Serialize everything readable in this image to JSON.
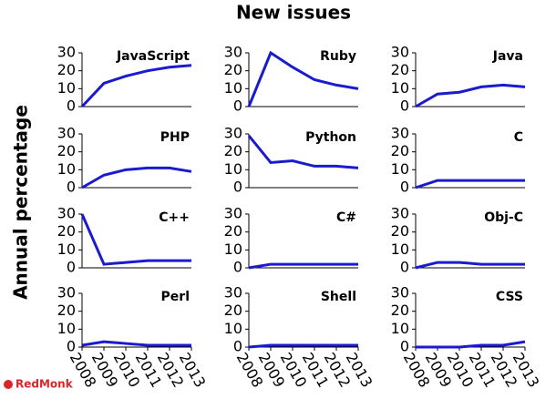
{
  "title": "New issues",
  "ylabel": "Annual percentage",
  "credit": "RedMonk",
  "chart_data": [
    {
      "type": "line",
      "title": "JavaScript",
      "x": [
        2008,
        2009,
        2010,
        2011,
        2012,
        2013
      ],
      "values": [
        0,
        13,
        17,
        20,
        22,
        23
      ],
      "color": "#1a1ad0",
      "xlim": [
        2008,
        2013
      ],
      "ylim": [
        0,
        30
      ],
      "yticks": [
        0,
        10,
        20,
        30
      ]
    },
    {
      "type": "line",
      "title": "Ruby",
      "x": [
        2008,
        2009,
        2010,
        2011,
        2012,
        2013
      ],
      "values": [
        0,
        30,
        22,
        15,
        12,
        10
      ],
      "color": "#1a1ad0",
      "xlim": [
        2008,
        2013
      ],
      "ylim": [
        0,
        30
      ],
      "yticks": [
        0,
        10,
        20,
        30
      ]
    },
    {
      "type": "line",
      "title": "Java",
      "x": [
        2008,
        2009,
        2010,
        2011,
        2012,
        2013
      ],
      "values": [
        0,
        7,
        8,
        11,
        12,
        11
      ],
      "color": "#1a1ad0",
      "xlim": [
        2008,
        2013
      ],
      "ylim": [
        0,
        30
      ],
      "yticks": [
        0,
        10,
        20,
        30
      ]
    },
    {
      "type": "line",
      "title": "PHP",
      "x": [
        2008,
        2009,
        2010,
        2011,
        2012,
        2013
      ],
      "values": [
        0,
        7,
        10,
        11,
        11,
        9
      ],
      "color": "#1a1ad0",
      "xlim": [
        2008,
        2013
      ],
      "ylim": [
        0,
        30
      ],
      "yticks": [
        0,
        10,
        20,
        30
      ]
    },
    {
      "type": "line",
      "title": "Python",
      "x": [
        2008,
        2009,
        2010,
        2011,
        2012,
        2013
      ],
      "values": [
        29,
        14,
        15,
        12,
        12,
        11
      ],
      "color": "#1a1ad0",
      "xlim": [
        2008,
        2013
      ],
      "ylim": [
        0,
        30
      ],
      "yticks": [
        0,
        10,
        20,
        30
      ]
    },
    {
      "type": "line",
      "title": "C",
      "x": [
        2008,
        2009,
        2010,
        2011,
        2012,
        2013
      ],
      "values": [
        0,
        4,
        4,
        4,
        4,
        4
      ],
      "color": "#1a1ad0",
      "xlim": [
        2008,
        2013
      ],
      "ylim": [
        0,
        30
      ],
      "yticks": [
        0,
        10,
        20,
        30
      ]
    },
    {
      "type": "line",
      "title": "C++",
      "x": [
        2008,
        2009,
        2010,
        2011,
        2012,
        2013
      ],
      "values": [
        30,
        2,
        3,
        4,
        4,
        4
      ],
      "color": "#1a1ad0",
      "xlim": [
        2008,
        2013
      ],
      "ylim": [
        0,
        30
      ],
      "yticks": [
        0,
        10,
        20,
        30
      ]
    },
    {
      "type": "line",
      "title": "C#",
      "x": [
        2008,
        2009,
        2010,
        2011,
        2012,
        2013
      ],
      "values": [
        0,
        2,
        2,
        2,
        2,
        2
      ],
      "color": "#1a1ad0",
      "xlim": [
        2008,
        2013
      ],
      "ylim": [
        0,
        30
      ],
      "yticks": [
        0,
        10,
        20,
        30
      ]
    },
    {
      "type": "line",
      "title": "Obj-C",
      "x": [
        2008,
        2009,
        2010,
        2011,
        2012,
        2013
      ],
      "values": [
        0,
        3,
        3,
        2,
        2,
        2
      ],
      "color": "#1a1ad0",
      "xlim": [
        2008,
        2013
      ],
      "ylim": [
        0,
        30
      ],
      "yticks": [
        0,
        10,
        20,
        30
      ]
    },
    {
      "type": "line",
      "title": "Perl",
      "x": [
        2008,
        2009,
        2010,
        2011,
        2012,
        2013
      ],
      "values": [
        1,
        3,
        2,
        1,
        1,
        1
      ],
      "color": "#1a1ad0",
      "xlim": [
        2008,
        2013
      ],
      "ylim": [
        0,
        30
      ],
      "yticks": [
        0,
        10,
        20,
        30
      ],
      "xticks": [
        2008,
        2009,
        2010,
        2011,
        2012,
        2013
      ]
    },
    {
      "type": "line",
      "title": "Shell",
      "x": [
        2008,
        2009,
        2010,
        2011,
        2012,
        2013
      ],
      "values": [
        0,
        1,
        1,
        1,
        1,
        1
      ],
      "color": "#1a1ad0",
      "xlim": [
        2008,
        2013
      ],
      "ylim": [
        0,
        30
      ],
      "yticks": [
        0,
        10,
        20,
        30
      ],
      "xticks": [
        2008,
        2009,
        2010,
        2011,
        2012,
        2013
      ]
    },
    {
      "type": "line",
      "title": "CSS",
      "x": [
        2008,
        2009,
        2010,
        2011,
        2012,
        2013
      ],
      "values": [
        0,
        0,
        0,
        1,
        1,
        3
      ],
      "color": "#1a1ad0",
      "xlim": [
        2008,
        2013
      ],
      "ylim": [
        0,
        30
      ],
      "yticks": [
        0,
        10,
        20,
        30
      ],
      "xticks": [
        2008,
        2009,
        2010,
        2011,
        2012,
        2013
      ]
    }
  ]
}
